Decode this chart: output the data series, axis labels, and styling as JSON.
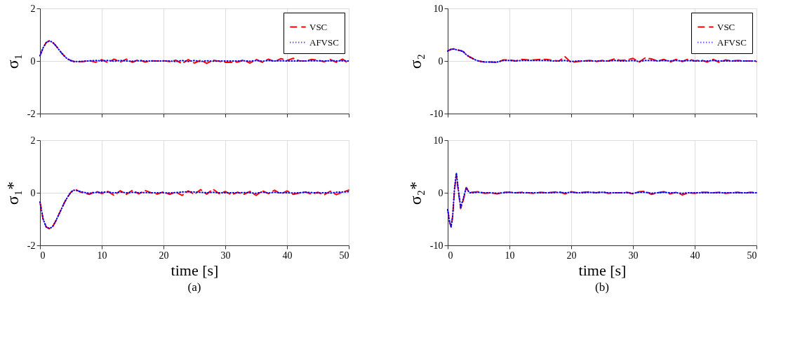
{
  "chart_data": [
    {
      "type": "line",
      "ylabel": "σ₁",
      "xlim": [
        0,
        50
      ],
      "xticks": [
        0,
        10,
        20,
        30,
        40,
        50
      ],
      "ylim": [
        -2,
        2
      ],
      "yticks": [
        -2,
        0,
        2
      ],
      "grid": true,
      "legend": "top right",
      "tick_labels": "y",
      "series": [
        {
          "name": "VSC",
          "color": "#ff0000",
          "line_style": "dashed",
          "x": [
            0,
            0.5,
            1,
            1.5,
            2,
            2.5,
            3,
            3.5,
            4,
            4.5,
            5,
            5.5,
            6,
            7,
            8,
            9,
            10,
            11,
            12,
            13,
            14,
            15,
            16,
            17,
            18,
            19,
            20,
            21,
            22,
            23,
            24,
            25,
            26,
            27,
            28,
            29,
            30,
            31,
            32,
            33,
            34,
            35,
            36,
            37,
            38,
            39,
            40,
            41,
            42,
            43,
            44,
            45,
            46,
            47,
            48,
            49,
            50
          ],
          "values": [
            0.2,
            0.5,
            0.7,
            0.77,
            0.72,
            0.6,
            0.45,
            0.3,
            0.18,
            0.08,
            0.02,
            -0.02,
            -0.03,
            -0.02,
            0.02,
            -0.05,
            0.05,
            -0.06,
            0.07,
            -0.04,
            0.07,
            -0.05,
            0.06,
            -0.04,
            0.01,
            0,
            0.01,
            -0.02,
            0.03,
            -0.1,
            0.05,
            -0.08,
            0.03,
            -0.09,
            0.03,
            -0.01,
            -0.05,
            -0.05,
            -0.04,
            0.04,
            -0.08,
            0.06,
            -0.05,
            0.07,
            -0.03,
            0.09,
            0.02,
            0.1,
            0.01,
            0,
            0.06,
            0.03,
            -0.03,
            0.06,
            -0.05,
            0.07,
            -0.1
          ]
        },
        {
          "name": "AFVSC",
          "color": "#0000ff",
          "line_style": "dotted",
          "x": [
            0,
            0.5,
            1,
            1.5,
            2,
            2.5,
            3,
            3.5,
            4,
            4.5,
            5,
            5.5,
            6,
            7,
            8,
            9,
            10,
            11,
            12,
            13,
            14,
            15,
            16,
            17,
            18,
            19,
            20,
            21,
            22,
            23,
            24,
            25,
            26,
            27,
            28,
            29,
            30,
            31,
            32,
            33,
            34,
            35,
            36,
            37,
            38,
            39,
            40,
            41,
            42,
            43,
            44,
            45,
            46,
            47,
            48,
            49,
            50
          ],
          "values": [
            0.2,
            0.5,
            0.7,
            0.76,
            0.72,
            0.6,
            0.45,
            0.3,
            0.17,
            0.07,
            0.01,
            -0.02,
            -0.02,
            -0.01,
            0,
            0.02,
            0,
            0.02,
            -0.01,
            0.02,
            0,
            -0.01,
            0.01,
            0,
            0,
            0,
            0,
            0,
            -0.02,
            0.02,
            -0.02,
            0.02,
            -0.02,
            0.01,
            -0.01,
            0,
            0,
            0,
            0,
            0.01,
            -0.01,
            0.02,
            -0.01,
            0.02,
            0,
            0.01,
            0,
            0,
            0,
            0,
            0.01,
            0.01,
            0,
            0.01,
            0,
            0.01,
            0
          ]
        }
      ]
    },
    {
      "type": "line",
      "ylabel": "σ₂",
      "xlim": [
        0,
        50
      ],
      "xticks": [
        0,
        10,
        20,
        30,
        40,
        50
      ],
      "ylim": [
        -10,
        10
      ],
      "yticks": [
        -10,
        0,
        10
      ],
      "grid": true,
      "legend": "top right",
      "tick_labels": "y",
      "series": [
        {
          "name": "VSC",
          "color": "#ff0000",
          "line_style": "dashed",
          "x": [
            0,
            0.5,
            1,
            1.5,
            2,
            2.5,
            3,
            3.5,
            4,
            4.5,
            5,
            6,
            7,
            8,
            9,
            10,
            11,
            12,
            13,
            14,
            15,
            16,
            17,
            18,
            19,
            20,
            21,
            22,
            23,
            24,
            25,
            26,
            27,
            28,
            29,
            30,
            31,
            32,
            33,
            34,
            35,
            36,
            37,
            38,
            39,
            40,
            41,
            42,
            43,
            44,
            45,
            46,
            47,
            48,
            49,
            50
          ],
          "values": [
            1.9,
            2.2,
            2.3,
            2.1,
            2,
            1.8,
            1.2,
            0.8,
            0.5,
            0.2,
            0,
            -0.2,
            -0.2,
            -0.3,
            0.2,
            0.2,
            0,
            0.3,
            0.2,
            0.2,
            0.3,
            0.3,
            0.1,
            0,
            0.8,
            -0.3,
            -0.1,
            0,
            0.1,
            -0.1,
            0.1,
            0,
            0.4,
            0.1,
            0.2,
            0.5,
            -0.2,
            0.6,
            0.4,
            0,
            0.3,
            -0.2,
            0.3,
            -0.1,
            0.4,
            0,
            0.2,
            -0.2,
            0.3,
            -0.3,
            0.2,
            0,
            0.1,
            0,
            0,
            -0.1
          ]
        },
        {
          "name": "AFVSC",
          "color": "#0000ff",
          "line_style": "dotted",
          "x": [
            0,
            0.5,
            1,
            1.5,
            2,
            2.5,
            3,
            3.5,
            4,
            4.5,
            5,
            6,
            7,
            8,
            9,
            10,
            11,
            12,
            13,
            14,
            15,
            16,
            17,
            18,
            19,
            20,
            21,
            22,
            23,
            24,
            25,
            26,
            27,
            28,
            29,
            30,
            31,
            32,
            33,
            34,
            35,
            36,
            37,
            38,
            39,
            40,
            41,
            42,
            43,
            44,
            45,
            46,
            47,
            48,
            49,
            50
          ],
          "values": [
            1.9,
            2.2,
            2.3,
            2.1,
            2,
            1.8,
            1.2,
            0.8,
            0.5,
            0.2,
            0,
            -0.2,
            -0.2,
            -0.2,
            0.1,
            0.1,
            0,
            0.1,
            0.1,
            0.1,
            0.1,
            0.1,
            0,
            0,
            0.1,
            -0.1,
            0,
            0,
            0,
            0,
            0,
            0,
            0.1,
            0,
            0,
            0.1,
            -0.1,
            0.1,
            0.1,
            0,
            0.1,
            0,
            0.1,
            0,
            0.1,
            0,
            0,
            0,
            0.1,
            0,
            0,
            0,
            0,
            0,
            0,
            0
          ]
        }
      ]
    },
    {
      "type": "line",
      "ylabel": "σ₁*",
      "xlabel": "time [s]",
      "annotations": [
        "(a)"
      ],
      "xlim": [
        0,
        50
      ],
      "xticks": [
        0,
        10,
        20,
        30,
        40,
        50
      ],
      "ylim": [
        -2,
        2
      ],
      "yticks": [
        -2,
        0,
        2
      ],
      "grid": true,
      "series": [
        {
          "color": "#ff0000",
          "line_style": "dashed",
          "x": [
            0,
            0.5,
            1,
            1.5,
            2,
            2.5,
            3,
            3.5,
            4,
            4.5,
            5,
            5.5,
            6,
            6.5,
            7,
            8,
            9,
            10,
            11,
            12,
            13,
            14,
            15,
            16,
            17,
            18,
            19,
            20,
            21,
            22,
            23,
            24,
            25,
            26,
            27,
            28,
            29,
            30,
            31,
            32,
            33,
            34,
            35,
            36,
            37,
            38,
            39,
            40,
            41,
            42,
            43,
            44,
            45,
            46,
            47,
            48,
            49,
            50
          ],
          "values": [
            -0.35,
            -1,
            -1.3,
            -1.36,
            -1.3,
            -1.1,
            -0.85,
            -0.6,
            -0.35,
            -0.15,
            0.02,
            0.12,
            0.1,
            0.03,
            0,
            -0.06,
            0.06,
            -0.03,
            0.05,
            -0.1,
            0.08,
            -0.06,
            0.1,
            -0.04,
            0.09,
            0,
            -0.05,
            0.04,
            -0.06,
            0.03,
            -0.1,
            0.07,
            -0.06,
            0.12,
            -0.05,
            0.14,
            -0.03,
            0.05,
            -0.08,
            0.02,
            -0.06,
            0.05,
            -0.1,
            0.08,
            -0.03,
            0.1,
            -0.05,
            0.07,
            -0.06,
            -0.01,
            0.03,
            -0.05,
            0.02,
            -0.08,
            0.06,
            -0.07,
            0.02,
            0.1
          ]
        },
        {
          "color": "#0000ff",
          "line_style": "dotted",
          "x": [
            0,
            0.5,
            1,
            1.5,
            2,
            2.5,
            3,
            3.5,
            4,
            4.5,
            5,
            5.5,
            6,
            6.5,
            7,
            8,
            9,
            10,
            11,
            12,
            13,
            14,
            15,
            16,
            17,
            18,
            19,
            20,
            21,
            22,
            23,
            24,
            25,
            26,
            27,
            28,
            29,
            30,
            31,
            32,
            33,
            34,
            35,
            36,
            37,
            38,
            39,
            40,
            41,
            42,
            43,
            44,
            45,
            46,
            47,
            48,
            49,
            50
          ],
          "values": [
            -0.35,
            -1,
            -1.3,
            -1.36,
            -1.3,
            -1.1,
            -0.85,
            -0.6,
            -0.35,
            -0.15,
            0.02,
            0.1,
            0.08,
            0.05,
            0.02,
            -0.02,
            0.01,
            0.02,
            0.03,
            -0.01,
            0.03,
            0,
            0.02,
            0,
            0.01,
            0,
            0,
            0,
            -0.01,
            0.01,
            0.03,
            0.04,
            0.03,
            0.02,
            0,
            0.02,
            0,
            0,
            0,
            0,
            0.01,
            0,
            -0.02,
            0.03,
            -0.01,
            0.02,
            0,
            0,
            -0.01,
            0,
            0.02,
            0.01,
            -0.01,
            0,
            -0.01,
            0.02,
            0.03,
            0.04
          ]
        }
      ]
    },
    {
      "type": "line",
      "ylabel": "σ₂*",
      "xlabel": "time [s]",
      "annotations": [
        "(b)"
      ],
      "xlim": [
        0,
        50
      ],
      "xticks": [
        0,
        10,
        20,
        30,
        40,
        50
      ],
      "ylim": [
        -10,
        10
      ],
      "yticks": [
        -10,
        0,
        10
      ],
      "grid": true,
      "series": [
        {
          "color": "#ff0000",
          "line_style": "dashed",
          "x": [
            0,
            0.3,
            0.55,
            0.8,
            1.1,
            1.4,
            1.7,
            2.1,
            2.5,
            3,
            3.5,
            4,
            5,
            6,
            7,
            8,
            9,
            10,
            11,
            12,
            13,
            14,
            15,
            16,
            17,
            18,
            19,
            20,
            21,
            22,
            23,
            24,
            25,
            26,
            27,
            28,
            29,
            30,
            31,
            32,
            33,
            34,
            35,
            36,
            37,
            38,
            39,
            40,
            41,
            42,
            43,
            44,
            45,
            46,
            47,
            48,
            49,
            50
          ],
          "values": [
            -3.2,
            -5.5,
            -6.5,
            -4.5,
            0.5,
            3.5,
            0.5,
            -3,
            -1.5,
            1,
            0,
            0.1,
            0.2,
            -0.1,
            0,
            -0.2,
            0.1,
            0.1,
            0,
            0.1,
            0,
            -0.1,
            0.1,
            0,
            0.1,
            0.2,
            -0.2,
            0.2,
            0,
            0.1,
            0.2,
            0,
            0.2,
            -0.1,
            0,
            0,
            0.1,
            -0.2,
            0.2,
            0.3,
            -0.3,
            0,
            0.2,
            -0.2,
            0.1,
            -0.4,
            0,
            -0.1,
            0.1,
            0.1,
            0,
            0.1,
            -0.1,
            0,
            0.1,
            -0.1,
            0.1,
            0
          ]
        },
        {
          "color": "#0000ff",
          "line_style": "dotted",
          "x": [
            0,
            0.3,
            0.55,
            0.8,
            1.1,
            1.4,
            1.7,
            2.1,
            2.5,
            3,
            3.5,
            4,
            5,
            6,
            7,
            8,
            9,
            10,
            11,
            12,
            13,
            14,
            15,
            16,
            17,
            18,
            19,
            20,
            21,
            22,
            23,
            24,
            25,
            26,
            27,
            28,
            29,
            30,
            31,
            32,
            33,
            34,
            35,
            36,
            37,
            38,
            39,
            40,
            41,
            42,
            43,
            44,
            45,
            46,
            47,
            48,
            49,
            50
          ],
          "values": [
            -3.2,
            -5.5,
            -6.5,
            -4.5,
            0.8,
            3.8,
            0.8,
            -2.8,
            -1.2,
            1,
            0,
            0,
            0.1,
            0,
            0,
            -0.1,
            0,
            0.1,
            0,
            0,
            0,
            0,
            0,
            0,
            0,
            0.1,
            0,
            0.1,
            0,
            0,
            0.1,
            0,
            0.1,
            0,
            0,
            0,
            0,
            -0.1,
            0.1,
            0.1,
            -0.1,
            0,
            0.1,
            0,
            0,
            -0.1,
            0,
            0,
            0,
            0,
            0,
            0,
            0,
            0,
            0,
            0,
            0,
            0
          ]
        }
      ]
    }
  ]
}
